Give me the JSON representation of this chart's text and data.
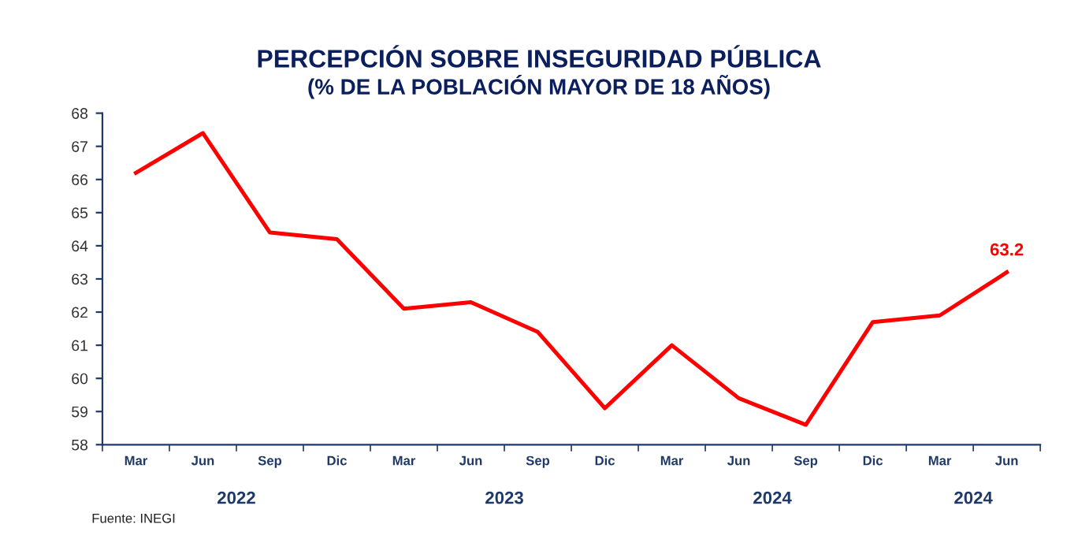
{
  "chart_data": {
    "type": "line",
    "title": "PERCEPCIÓN SOBRE INSEGURIDAD PÚBLICA",
    "subtitle": "(% DE LA POBLACIÓN MAYOR DE 18 AÑOS)",
    "categories": [
      "Mar",
      "Jun",
      "Sep",
      "Dic",
      "Mar",
      "Jun",
      "Sep",
      "Dic",
      "Mar",
      "Jun",
      "Sep",
      "Dic",
      "Mar",
      "Jun"
    ],
    "series": [
      {
        "color": "#ff0000",
        "values": [
          66.2,
          67.4,
          64.4,
          64.2,
          62.1,
          62.3,
          61.4,
          59.1,
          61.0,
          59.4,
          58.6,
          61.7,
          61.9,
          63.2
        ],
        "value_labels": [
          null,
          null,
          null,
          null,
          null,
          null,
          null,
          null,
          null,
          null,
          null,
          null,
          null,
          "63.2"
        ]
      }
    ],
    "ylim": [
      58,
      68
    ],
    "yticks": [
      58,
      59,
      60,
      61,
      62,
      63,
      64,
      65,
      66,
      67,
      68
    ],
    "grid": false,
    "marker": "none",
    "line_style": "solid",
    "annotations": [
      "2022",
      "2023",
      "2024",
      "2024",
      "Fuente: INEGI"
    ]
  }
}
